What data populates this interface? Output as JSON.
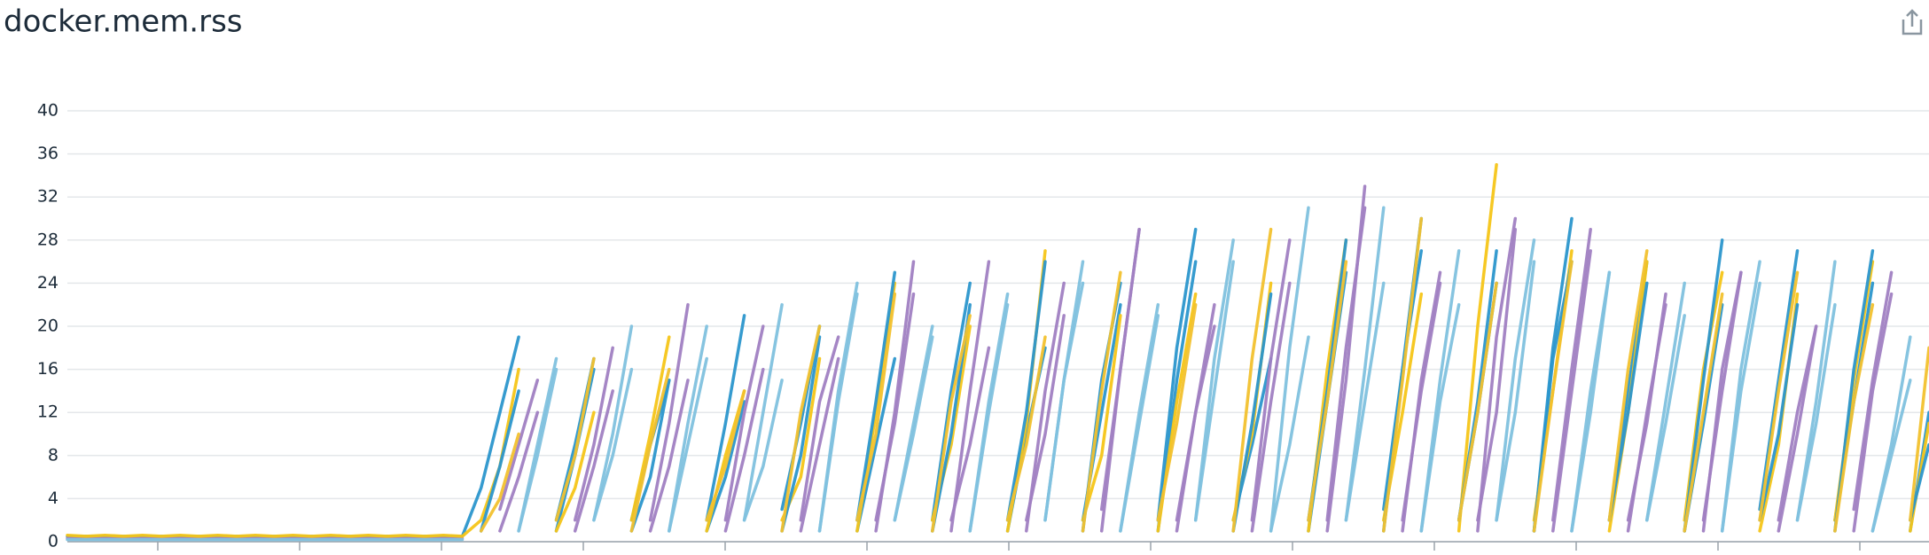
{
  "chart_data": {
    "type": "line",
    "title": "docker.mem.rss",
    "categories": [
      null,
      null,
      null,
      null,
      null,
      null,
      null,
      null,
      null,
      null,
      null,
      null,
      null,
      null,
      null,
      null,
      null,
      null,
      null,
      null,
      null,
      null,
      null,
      null,
      null,
      null,
      null,
      null,
      null,
      null,
      null,
      null,
      null,
      null,
      null,
      null,
      null,
      null,
      null,
      null,
      null,
      null,
      null,
      null,
      null,
      null,
      null,
      null,
      null,
      null,
      null,
      null,
      null,
      null,
      null,
      null,
      null,
      null,
      null,
      null,
      null,
      null,
      null,
      null,
      null,
      null,
      null,
      null,
      null,
      null,
      null,
      null,
      null,
      null,
      null,
      null,
      null,
      null,
      null,
      null,
      null,
      null,
      null,
      null,
      null,
      null,
      null,
      null,
      null,
      null,
      null,
      null,
      null,
      null,
      null,
      null,
      null,
      null,
      null,
      null
    ],
    "ylim": [
      0,
      40
    ],
    "yticks": [
      0,
      4,
      8,
      12,
      16,
      20,
      24,
      28,
      32,
      36,
      40
    ],
    "grid": true,
    "series": [
      {
        "color": "#2b96cc",
        "values": [
          0.5,
          0.5,
          0.5,
          0.5,
          0.5,
          0.5,
          0.5,
          0.5,
          0.5,
          0.5,
          0.5,
          0.5,
          0.5,
          0.5,
          0.5,
          0.5,
          0.5,
          0.5,
          0.5,
          0.5,
          0.5,
          0.5,
          5,
          12,
          19,
          null,
          1,
          8,
          16,
          null,
          2,
          9,
          15,
          null,
          1,
          6,
          13,
          null,
          3,
          11,
          20,
          null,
          1,
          9,
          17,
          null,
          2,
          14,
          24,
          null,
          1,
          10,
          18,
          null,
          2,
          12,
          22,
          null,
          1,
          15,
          26,
          null,
          2,
          9,
          17,
          null,
          1,
          13,
          25,
          null,
          3,
          16,
          27,
          null,
          2,
          12,
          24,
          null,
          1,
          18,
          30,
          null,
          2,
          14,
          26,
          null,
          1,
          11,
          22,
          null,
          3,
          15,
          27,
          null,
          2,
          13,
          24,
          null,
          1,
          12
        ]
      },
      {
        "color": "#a07fc2",
        "values": [
          0.3,
          0.3,
          0.3,
          0.3,
          0.3,
          0.3,
          0.3,
          0.3,
          0.3,
          0.3,
          0.3,
          0.3,
          0.3,
          0.3,
          0.3,
          0.3,
          0.3,
          0.3,
          0.3,
          0.3,
          0.3,
          0.3,
          null,
          3,
          9,
          15,
          null,
          1,
          7,
          14,
          null,
          2,
          11,
          22,
          null,
          1,
          8,
          16,
          null,
          2,
          13,
          19,
          null,
          1,
          12,
          26,
          null,
          2,
          9,
          18,
          null,
          1,
          14,
          24,
          null,
          3,
          16,
          29,
          null,
          1,
          12,
          20,
          null,
          2,
          17,
          28,
          null,
          1,
          15,
          33,
          null,
          2,
          14,
          24,
          null,
          1,
          19,
          30,
          null,
          2,
          16,
          29,
          null,
          1,
          12,
          22,
          null,
          2,
          14,
          25,
          null,
          1,
          10,
          20,
          null,
          3,
          15,
          25,
          null,
          2
        ]
      },
      {
        "color": "#f5c518",
        "values": [
          0.6,
          0.5,
          0.6,
          0.5,
          0.6,
          0.5,
          0.6,
          0.5,
          0.6,
          0.5,
          0.6,
          0.5,
          0.6,
          0.5,
          0.6,
          0.5,
          0.6,
          0.5,
          0.6,
          0.5,
          0.6,
          0.5,
          2,
          7,
          16,
          null,
          1,
          5,
          12,
          null,
          2,
          10,
          19,
          null,
          1,
          8,
          14,
          null,
          2,
          6,
          17,
          null,
          1,
          12,
          24,
          null,
          2,
          9,
          20,
          null,
          1,
          11,
          27,
          null,
          2,
          8,
          21,
          null,
          1,
          13,
          23,
          null,
          2,
          10,
          24,
          null,
          1,
          16,
          28,
          null,
          2,
          12,
          23,
          null,
          1,
          20,
          35,
          null,
          2,
          14,
          27,
          null,
          1,
          12,
          26,
          null,
          2,
          16,
          25,
          null,
          1,
          9,
          23,
          null,
          2,
          15,
          26,
          null,
          1,
          11
        ]
      },
      {
        "color": "#7fc1de",
        "values": [
          0.2,
          0.2,
          0.2,
          0.2,
          0.2,
          0.2,
          0.2,
          0.2,
          0.2,
          0.2,
          0.2,
          0.2,
          0.2,
          0.2,
          0.2,
          0.2,
          0.2,
          0.2,
          0.2,
          0.2,
          0.2,
          0.2,
          null,
          null,
          1,
          9,
          17,
          null,
          2,
          8,
          16,
          null,
          1,
          11,
          20,
          null,
          2,
          7,
          15,
          null,
          1,
          13,
          23,
          null,
          2,
          10,
          19,
          null,
          1,
          12,
          22,
          null,
          2,
          15,
          24,
          null,
          1,
          11,
          21,
          null,
          2,
          14,
          26,
          null,
          1,
          9,
          19,
          null,
          2,
          16,
          31,
          null,
          1,
          13,
          22,
          null,
          2,
          17,
          28,
          null,
          1,
          12,
          25,
          null,
          2,
          11,
          21,
          null,
          1,
          14,
          24,
          null,
          2,
          13,
          26,
          null,
          1,
          8,
          15,
          null
        ]
      },
      {
        "color": "#2b96cc",
        "values": [
          null,
          null,
          null,
          null,
          null,
          null,
          null,
          null,
          null,
          null,
          null,
          null,
          null,
          null,
          null,
          null,
          null,
          null,
          null,
          null,
          null,
          null,
          1,
          7,
          14,
          null,
          2,
          9,
          17,
          null,
          1,
          6,
          15,
          null,
          2,
          11,
          21,
          null,
          1,
          8,
          19,
          null,
          2,
          13,
          25,
          null,
          1,
          10,
          22,
          null,
          2,
          12,
          26,
          null,
          1,
          15,
          24,
          null,
          2,
          18,
          29,
          null,
          1,
          11,
          23,
          null,
          2,
          14,
          28,
          null,
          1,
          16,
          30,
          null,
          2,
          13,
          27,
          null,
          1,
          17,
          26,
          null,
          2,
          12,
          24,
          null,
          1,
          15,
          28,
          null,
          2,
          10,
          22,
          null,
          1,
          16,
          27,
          null,
          2,
          9
        ]
      },
      {
        "color": "#a07fc2",
        "values": [
          null,
          null,
          null,
          null,
          null,
          null,
          null,
          null,
          null,
          null,
          null,
          null,
          null,
          null,
          null,
          null,
          null,
          null,
          null,
          null,
          null,
          null,
          null,
          1,
          6,
          12,
          null,
          2,
          9,
          18,
          null,
          1,
          7,
          15,
          null,
          2,
          12,
          20,
          null,
          1,
          9,
          17,
          null,
          2,
          11,
          23,
          null,
          1,
          14,
          26,
          null,
          2,
          10,
          21,
          null,
          1,
          16,
          29,
          null,
          2,
          12,
          22,
          null,
          1,
          13,
          24,
          null,
          2,
          18,
          31,
          null,
          1,
          15,
          25,
          null,
          2,
          12,
          29,
          null,
          1,
          14,
          27,
          null,
          2,
          11,
          23,
          null,
          1,
          16,
          25,
          null,
          2,
          12,
          20,
          null,
          1,
          14,
          23,
          null,
          2
        ]
      },
      {
        "color": "#f2c12e",
        "values": [
          null,
          null,
          null,
          null,
          null,
          null,
          null,
          null,
          null,
          null,
          null,
          null,
          null,
          null,
          null,
          null,
          null,
          null,
          null,
          null,
          null,
          null,
          1,
          4,
          10,
          null,
          2,
          8,
          17,
          null,
          1,
          9,
          16,
          null,
          2,
          7,
          14,
          null,
          1,
          12,
          20,
          null,
          2,
          10,
          23,
          null,
          1,
          13,
          21,
          null,
          2,
          9,
          19,
          null,
          1,
          14,
          25,
          null,
          2,
          11,
          22,
          null,
          1,
          17,
          29,
          null,
          2,
          13,
          26,
          null,
          1,
          15,
          30,
          null,
          2,
          12,
          24,
          null,
          1,
          14,
          26,
          null,
          2,
          16,
          27,
          null,
          1,
          12,
          23,
          null,
          2,
          14,
          25,
          null,
          1,
          13,
          22,
          null,
          2,
          18
        ]
      },
      {
        "color": "#7fc1de",
        "values": [
          null,
          null,
          null,
          null,
          null,
          null,
          null,
          null,
          null,
          null,
          null,
          null,
          null,
          null,
          null,
          null,
          null,
          null,
          null,
          null,
          null,
          null,
          null,
          null,
          1,
          8,
          16,
          null,
          2,
          10,
          20,
          null,
          1,
          9,
          17,
          null,
          2,
          12,
          22,
          null,
          1,
          14,
          24,
          null,
          2,
          11,
          20,
          null,
          1,
          13,
          23,
          null,
          2,
          15,
          26,
          null,
          1,
          12,
          22,
          null,
          2,
          17,
          28,
          null,
          1,
          18,
          31,
          null,
          2,
          13,
          24,
          null,
          1,
          15,
          27,
          null,
          2,
          12,
          26,
          null,
          1,
          14,
          25,
          null,
          2,
          13,
          24,
          null,
          1,
          16,
          26,
          null,
          2,
          11,
          22,
          null,
          1,
          9,
          19,
          null
        ]
      }
    ]
  }
}
